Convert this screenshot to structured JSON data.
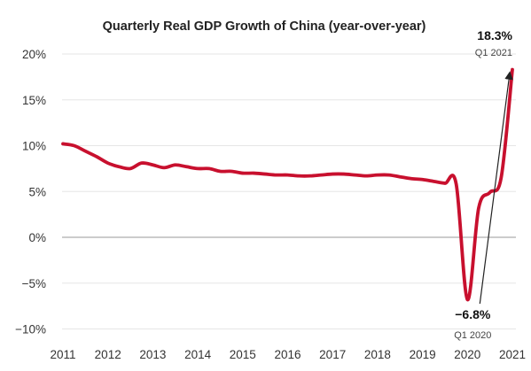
{
  "chart_data": {
    "type": "line",
    "title": "Quarterly Real GDP Growth of China (year-over-year)",
    "xlabel": "",
    "ylabel": "",
    "x_ticks": [
      "2011",
      "2012",
      "2013",
      "2014",
      "2015",
      "2016",
      "2017",
      "2018",
      "2019",
      "2020",
      "2021"
    ],
    "y_ticks": [
      "20%",
      "15%",
      "10%",
      "5%",
      "0%",
      "−5%",
      "−10%"
    ],
    "y_tick_values": [
      20,
      15,
      10,
      5,
      0,
      -5,
      -10
    ],
    "xlim": [
      2011,
      2021
    ],
    "ylim": [
      -10,
      20
    ],
    "grid": "horizontal",
    "series": [
      {
        "color": "#c8102e",
        "points": [
          [
            2011.0,
            10.2
          ],
          [
            2011.25,
            10.0
          ],
          [
            2011.5,
            9.4
          ],
          [
            2011.75,
            8.8
          ],
          [
            2012.0,
            8.1
          ],
          [
            2012.25,
            7.7
          ],
          [
            2012.5,
            7.5
          ],
          [
            2012.75,
            8.1
          ],
          [
            2013.0,
            7.9
          ],
          [
            2013.25,
            7.6
          ],
          [
            2013.5,
            7.9
          ],
          [
            2013.75,
            7.7
          ],
          [
            2014.0,
            7.5
          ],
          [
            2014.25,
            7.5
          ],
          [
            2014.5,
            7.2
          ],
          [
            2014.75,
            7.2
          ],
          [
            2015.0,
            7.0
          ],
          [
            2015.25,
            7.0
          ],
          [
            2015.5,
            6.9
          ],
          [
            2015.75,
            6.8
          ],
          [
            2016.0,
            6.8
          ],
          [
            2016.25,
            6.7
          ],
          [
            2016.5,
            6.7
          ],
          [
            2016.75,
            6.8
          ],
          [
            2017.0,
            6.9
          ],
          [
            2017.25,
            6.9
          ],
          [
            2017.5,
            6.8
          ],
          [
            2017.75,
            6.7
          ],
          [
            2018.0,
            6.8
          ],
          [
            2018.25,
            6.8
          ],
          [
            2018.5,
            6.6
          ],
          [
            2018.75,
            6.4
          ],
          [
            2019.0,
            6.3
          ],
          [
            2019.25,
            6.1
          ],
          [
            2019.5,
            5.9
          ],
          [
            2019.75,
            5.8
          ],
          [
            2020.0,
            -6.8
          ],
          [
            2020.25,
            3.2
          ],
          [
            2020.5,
            4.9
          ],
          [
            2020.75,
            6.5
          ],
          [
            2021.0,
            18.3
          ]
        ]
      }
    ],
    "annotations": [
      {
        "value": "18.3%",
        "label": "Q1 2021",
        "x": 2021.0,
        "y": 18.3
      },
      {
        "value": "−6.8%",
        "label": "Q1 2020",
        "x": 2020.0,
        "y": -6.8
      }
    ]
  }
}
